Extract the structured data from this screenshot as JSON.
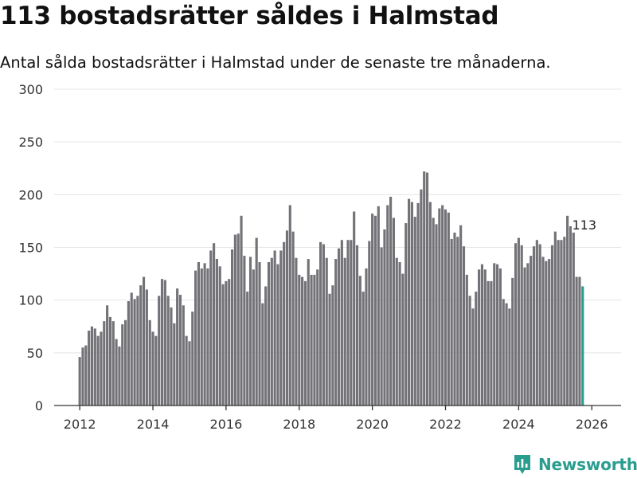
{
  "title": "113 bostadsrätter såldes i Halmstad",
  "subtitle": "Antal sålda bostadsrätter i Halmstad under de senaste tre månaderna.",
  "brand": {
    "name": "Newsworthy",
    "color": "#2a9d8f",
    "icon": "newsworthy-logo-icon"
  },
  "colors": {
    "bar": "#737277",
    "highlight": "#2a9d8f",
    "grid": "#e4e4e4",
    "axis": "#333333"
  },
  "chart_data": {
    "type": "bar",
    "title": "113 bostadsrätter såldes i Halmstad",
    "xlabel": "",
    "ylabel": "",
    "grid": true,
    "xlim": [
      2011.3,
      2026.8
    ],
    "ylim": [
      0,
      300
    ],
    "yticks": [
      0,
      50,
      100,
      150,
      200,
      250,
      300
    ],
    "xticks": [
      2012,
      2014,
      2016,
      2018,
      2020,
      2022,
      2024,
      2026
    ],
    "start": [
      2012,
      0
    ],
    "frequency": "monthly",
    "annotation": {
      "text": "113",
      "value": 113
    },
    "values": [
      46,
      55,
      57,
      71,
      75,
      73,
      66,
      70,
      80,
      95,
      84,
      80,
      63,
      56,
      77,
      81,
      99,
      107,
      101,
      104,
      114,
      122,
      110,
      81,
      70,
      66,
      104,
      120,
      119,
      104,
      93,
      78,
      111,
      105,
      95,
      66,
      61,
      89,
      128,
      136,
      130,
      135,
      130,
      147,
      154,
      139,
      132,
      115,
      118,
      120,
      148,
      162,
      163,
      180,
      142,
      108,
      141,
      129,
      159,
      136,
      97,
      113,
      136,
      140,
      147,
      134,
      147,
      155,
      166,
      190,
      165,
      140,
      124,
      122,
      118,
      139,
      124,
      124,
      129,
      155,
      153,
      140,
      106,
      114,
      139,
      149,
      157,
      140,
      157,
      157,
      184,
      152,
      123,
      108,
      130,
      156,
      182,
      180,
      189,
      150,
      167,
      190,
      198,
      178,
      140,
      136,
      125,
      173,
      196,
      193,
      179,
      192,
      205,
      222,
      221,
      193,
      178,
      172,
      187,
      190,
      186,
      183,
      158,
      164,
      160,
      171,
      151,
      124,
      104,
      92,
      108,
      129,
      134,
      129,
      118,
      118,
      135,
      134,
      130,
      101,
      97,
      92,
      121,
      154,
      159,
      152,
      131,
      135,
      142,
      151,
      157,
      153,
      141,
      137,
      139,
      152,
      165,
      157,
      157,
      160,
      180,
      170,
      164,
      122,
      122,
      113
    ]
  }
}
